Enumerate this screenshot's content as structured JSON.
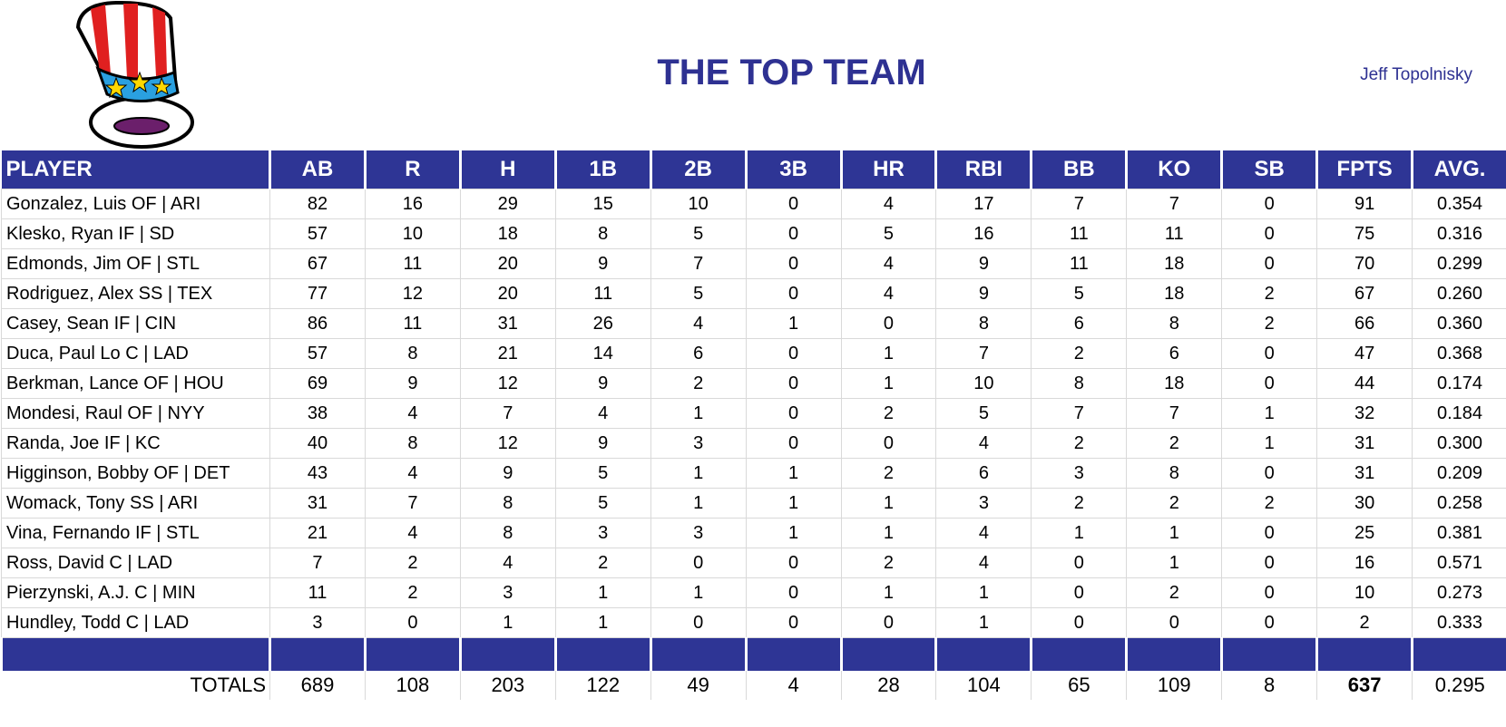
{
  "header": {
    "title": "THE TOP TEAM",
    "owner": "Jeff Topolnisky"
  },
  "table": {
    "columns": [
      "PLAYER",
      "AB",
      "R",
      "H",
      "1B",
      "2B",
      "3B",
      "HR",
      "RBI",
      "BB",
      "KO",
      "SB",
      "FPTS",
      "AVG."
    ],
    "rows": [
      [
        "Gonzalez, Luis OF | ARI",
        "82",
        "16",
        "29",
        "15",
        "10",
        "0",
        "4",
        "17",
        "7",
        "7",
        "0",
        "91",
        "0.354"
      ],
      [
        "Klesko, Ryan IF | SD",
        "57",
        "10",
        "18",
        "8",
        "5",
        "0",
        "5",
        "16",
        "11",
        "11",
        "0",
        "75",
        "0.316"
      ],
      [
        "Edmonds, Jim OF | STL",
        "67",
        "11",
        "20",
        "9",
        "7",
        "0",
        "4",
        "9",
        "11",
        "18",
        "0",
        "70",
        "0.299"
      ],
      [
        "Rodriguez, Alex SS | TEX",
        "77",
        "12",
        "20",
        "11",
        "5",
        "0",
        "4",
        "9",
        "5",
        "18",
        "2",
        "67",
        "0.260"
      ],
      [
        "Casey, Sean IF | CIN",
        "86",
        "11",
        "31",
        "26",
        "4",
        "1",
        "0",
        "8",
        "6",
        "8",
        "2",
        "66",
        "0.360"
      ],
      [
        "Duca, Paul Lo C | LAD",
        "57",
        "8",
        "21",
        "14",
        "6",
        "0",
        "1",
        "7",
        "2",
        "6",
        "0",
        "47",
        "0.368"
      ],
      [
        "Berkman, Lance OF | HOU",
        "69",
        "9",
        "12",
        "9",
        "2",
        "0",
        "1",
        "10",
        "8",
        "18",
        "0",
        "44",
        "0.174"
      ],
      [
        "Mondesi, Raul OF | NYY",
        "38",
        "4",
        "7",
        "4",
        "1",
        "0",
        "2",
        "5",
        "7",
        "7",
        "1",
        "32",
        "0.184"
      ],
      [
        "Randa, Joe IF | KC",
        "40",
        "8",
        "12",
        "9",
        "3",
        "0",
        "0",
        "4",
        "2",
        "2",
        "1",
        "31",
        "0.300"
      ],
      [
        "Higginson, Bobby OF | DET",
        "43",
        "4",
        "9",
        "5",
        "1",
        "1",
        "2",
        "6",
        "3",
        "8",
        "0",
        "31",
        "0.209"
      ],
      [
        "Womack, Tony SS | ARI",
        "31",
        "7",
        "8",
        "5",
        "1",
        "1",
        "1",
        "3",
        "2",
        "2",
        "2",
        "30",
        "0.258"
      ],
      [
        "Vina, Fernando IF | STL",
        "21",
        "4",
        "8",
        "3",
        "3",
        "1",
        "1",
        "4",
        "1",
        "1",
        "0",
        "25",
        "0.381"
      ],
      [
        "Ross, David C | LAD",
        "7",
        "2",
        "4",
        "2",
        "0",
        "0",
        "2",
        "4",
        "0",
        "1",
        "0",
        "16",
        "0.571"
      ],
      [
        "Pierzynski, A.J. C | MIN",
        "11",
        "2",
        "3",
        "1",
        "1",
        "0",
        "1",
        "1",
        "0",
        "2",
        "0",
        "10",
        "0.273"
      ],
      [
        "Hundley, Todd C | LAD",
        "3",
        "0",
        "1",
        "1",
        "0",
        "0",
        "0",
        "1",
        "0",
        "0",
        "0",
        "2",
        "0.333"
      ]
    ],
    "totals": {
      "label": "TOTALS",
      "values": [
        "689",
        "108",
        "203",
        "122",
        "49",
        "4",
        "28",
        "104",
        "65",
        "109",
        "8",
        "637",
        "0.295"
      ]
    }
  }
}
